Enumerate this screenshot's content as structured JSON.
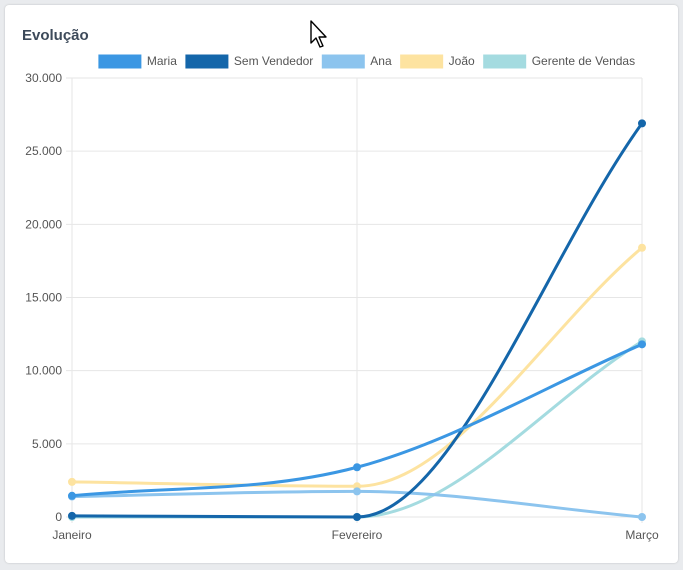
{
  "card": {
    "title": "Evolução"
  },
  "chart_data": {
    "type": "line",
    "title": "Evolução",
    "categories": [
      "Janeiro",
      "Fevereiro",
      "Março"
    ],
    "ylim": [
      0,
      30000
    ],
    "yticks": [
      0,
      5000,
      10000,
      15000,
      20000,
      25000,
      30000
    ],
    "ytick_labels": [
      "0",
      "5.000",
      "10.000",
      "15.000",
      "20.000",
      "25.000",
      "30.000"
    ],
    "grid": true,
    "legend_position": "top",
    "series": [
      {
        "name": "Maria",
        "values": [
          1450,
          3400,
          11800
        ],
        "color": "#3b97e3"
      },
      {
        "name": "Sem Vendedor",
        "values": [
          80,
          0,
          26900
        ],
        "color": "#1466aa"
      },
      {
        "name": "Ana",
        "values": [
          1400,
          1750,
          0
        ],
        "color": "#8cc4ee"
      },
      {
        "name": "João",
        "values": [
          2400,
          2100,
          18400
        ],
        "color": "#fde3a0"
      },
      {
        "name": "Gerente de Vendas",
        "values": [
          0,
          0,
          12000
        ],
        "color": "#a4dbe0"
      }
    ]
  }
}
